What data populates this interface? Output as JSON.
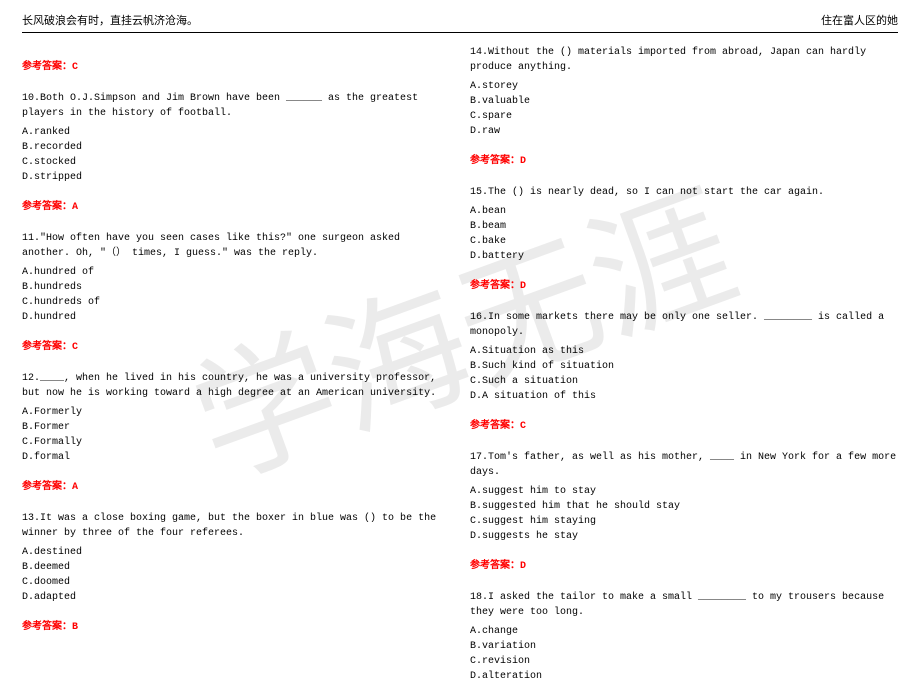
{
  "header": {
    "left": "长风破浪会有时，直挂云帆济沧海。",
    "right": "住在富人区的她"
  },
  "watermark": "学海无涯",
  "answer_label": "参考答案：",
  "colors": {
    "answer_color": "#ff0000",
    "text_color": "#000000",
    "watermark_color": "rgba(0,0,0,0.08)"
  },
  "left_column": [
    {
      "type": "answer",
      "value": "C"
    },
    {
      "type": "question",
      "number": "10",
      "text": "Both O.J.Simpson and Jim Brown have been ______ as the greatest players in the history of football.",
      "options": [
        "A.ranked",
        "B.recorded",
        "C.stocked",
        "D.stripped"
      ],
      "answer": "A"
    },
    {
      "type": "question",
      "number": "11",
      "text": "\"How often have you seen cases like this?\" one surgeon asked another. Oh, \"（） times, I guess.\" was the reply.",
      "options": [
        "A.hundred of",
        "B.hundreds",
        "C.hundreds of",
        "D.hundred"
      ],
      "answer": "C"
    },
    {
      "type": "question",
      "number": "12",
      "text": "____, when he lived in his country, he was a university professor, but now he is working toward a high degree at an American university.",
      "options": [
        "A.Formerly",
        "B.Former",
        "C.Formally",
        "D.formal"
      ],
      "answer": "A"
    },
    {
      "type": "question",
      "number": "13",
      "text": "It was a close boxing game, but the boxer in blue was () to be the winner by three of the four referees.",
      "options": [
        "A.destined",
        "B.deemed",
        "C.doomed",
        "D.adapted"
      ],
      "answer": "B"
    }
  ],
  "right_column": [
    {
      "type": "question",
      "number": "14",
      "text": "Without the () materials imported from abroad, Japan can hardly produce anything.",
      "options": [
        "A.storey",
        "B.valuable",
        "C.spare",
        "D.raw"
      ],
      "answer": "D"
    },
    {
      "type": "question",
      "number": "15",
      "text": "The () is nearly dead, so I can not start the car again.",
      "options": [
        "A.bean",
        "B.beam",
        "C.bake",
        "D.battery"
      ],
      "answer": "D"
    },
    {
      "type": "question",
      "number": "16",
      "text": "In some markets there may be only one seller. ________ is called a monopoly.",
      "options": [
        "A.Situation as this",
        "B.Such kind of situation",
        "C.Such a situation",
        "D.A situation of this"
      ],
      "answer": "C"
    },
    {
      "type": "question",
      "number": "17",
      "text": "Tom's father, as well as his mother, ____ in New York for a few more days.",
      "options": [
        "A.suggest him to stay",
        "B.suggested him that he should stay",
        "C.suggest him staying",
        "D.suggests he stay"
      ],
      "answer": "D"
    },
    {
      "type": "question_no_answer",
      "number": "18",
      "text": "I asked the tailor to make a small ________ to my trousers because they were too long.",
      "options": [
        "A.change",
        "B.variation",
        "C.revision",
        "D.alteration"
      ]
    }
  ]
}
